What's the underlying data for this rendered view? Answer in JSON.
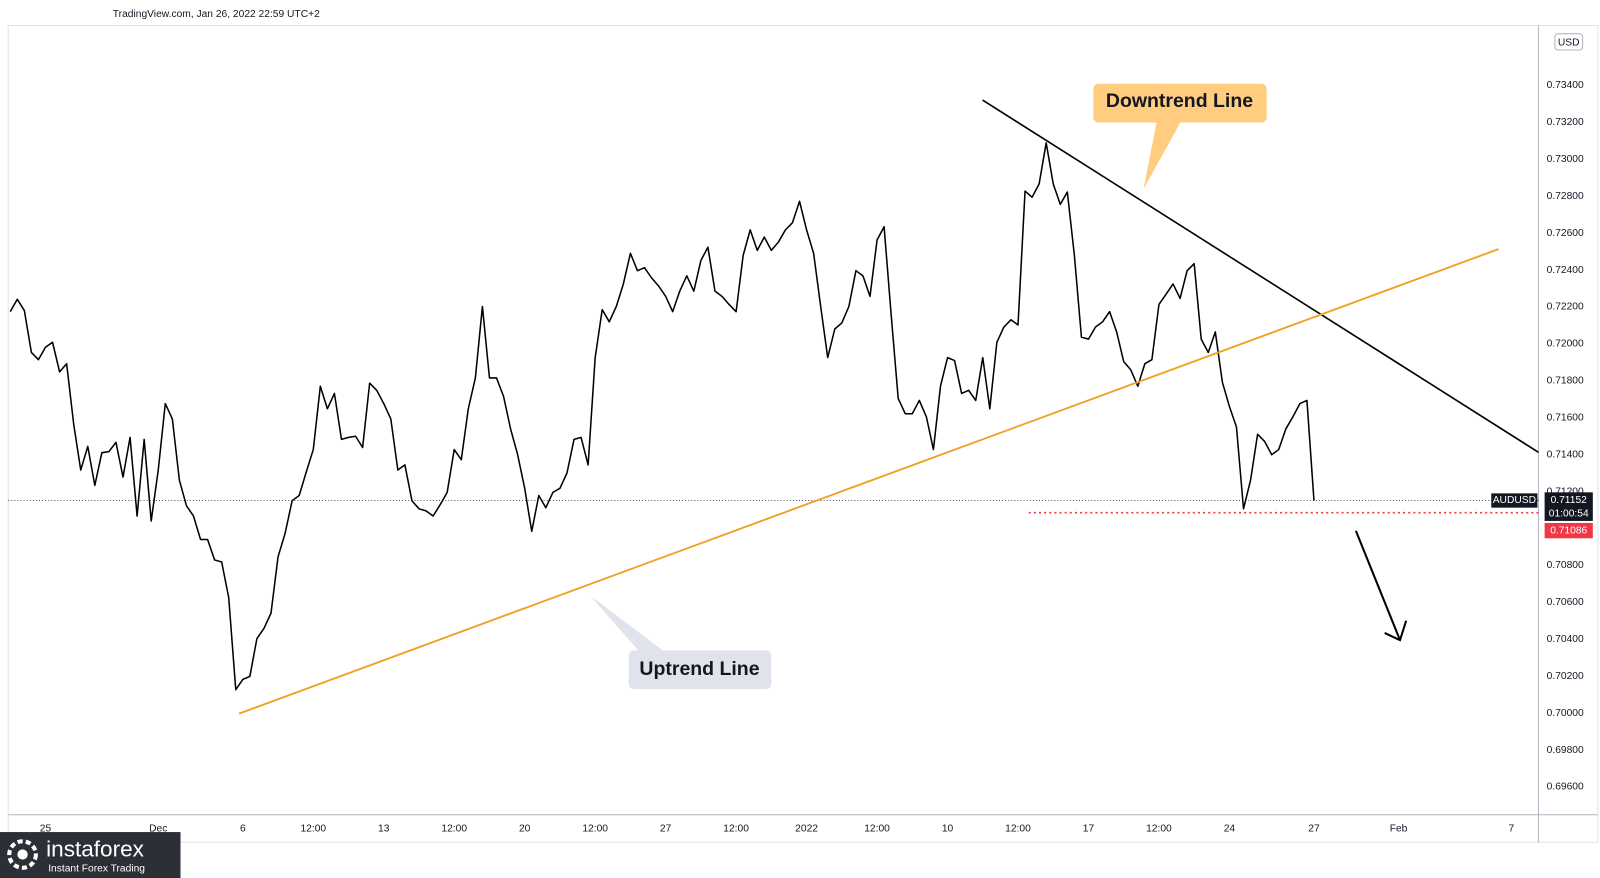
{
  "chart_data": {
    "type": "line",
    "header": "TradingView.com, Jan 26, 2022 22:59 UTC+2",
    "currency": "USD",
    "annotations": [
      "Downtrend Line",
      "Uptrend Line"
    ],
    "watermark": {
      "brand": "instaforex",
      "tagline": "Instant Forex Trading"
    },
    "categories": [
      null,
      null,
      null,
      null,
      null,
      "25",
      null,
      null,
      null,
      null,
      null,
      null,
      null,
      null,
      null,
      null,
      null,
      null,
      null,
      null,
      null,
      "Dec",
      null,
      null,
      null,
      null,
      null,
      null,
      null,
      null,
      null,
      null,
      null,
      "6",
      null,
      null,
      null,
      null,
      null,
      null,
      null,
      null,
      null,
      "12:00",
      null,
      null,
      null,
      null,
      null,
      null,
      null,
      null,
      null,
      "13",
      null,
      null,
      null,
      null,
      null,
      null,
      null,
      null,
      null,
      "12:00",
      null,
      null,
      null,
      null,
      null,
      null,
      null,
      null,
      null,
      "20",
      null,
      null,
      null,
      null,
      null,
      null,
      null,
      null,
      null,
      "12:00",
      null,
      null,
      null,
      null,
      null,
      null,
      null,
      null,
      null,
      "27",
      null,
      null,
      null,
      null,
      null,
      null,
      null,
      null,
      null,
      "12:00",
      null,
      null,
      null,
      null,
      null,
      null,
      null,
      null,
      null,
      "2022",
      null,
      null,
      null,
      null,
      null,
      null,
      null,
      null,
      null,
      "12:00",
      null,
      null,
      null,
      null,
      null,
      null,
      null,
      null,
      null,
      "10",
      null,
      null,
      null,
      null,
      null,
      null,
      null,
      null,
      null,
      "12:00",
      null,
      null,
      null,
      null,
      null,
      null,
      null,
      null,
      null,
      "17",
      null,
      null,
      null,
      null,
      null,
      null,
      null,
      null,
      null,
      "12:00",
      null,
      null,
      null,
      null,
      null,
      null,
      null,
      null,
      null,
      "24",
      null,
      null,
      null,
      null,
      null,
      null,
      null,
      null,
      null,
      null,
      null,
      "27",
      null,
      null,
      null,
      null,
      null,
      null,
      null,
      null,
      null,
      null,
      null,
      "Feb",
      null,
      null,
      null,
      null,
      null,
      null,
      null,
      null,
      null,
      null,
      null,
      null,
      null,
      null,
      null,
      "7",
      null,
      null,
      null,
      null
    ],
    "series": [
      {
        "name": "AUDUSD",
        "color": "#000000",
        "values": [
          0.72175,
          0.72242,
          0.72181,
          0.71954,
          0.71915,
          0.71982,
          0.72009,
          0.71849,
          0.71893,
          0.71566,
          0.71317,
          0.71445,
          0.71234,
          0.71411,
          0.71417,
          0.71467,
          0.71279,
          0.71494,
          0.71068,
          0.71483,
          0.71041,
          0.71317,
          0.71677,
          0.71594,
          0.71262,
          0.71124,
          0.71068,
          0.70941,
          0.70941,
          0.7083,
          0.70819,
          0.70626,
          0.70127,
          0.70183,
          0.70199,
          0.70404,
          0.70459,
          0.70542,
          0.70847,
          0.70974,
          0.71151,
          0.71179,
          0.71306,
          0.71428,
          0.71771,
          0.71649,
          0.71732,
          0.71483,
          0.71494,
          0.715,
          0.71439,
          0.71788,
          0.71749,
          0.71677,
          0.71594,
          0.71317,
          0.71345,
          0.71151,
          0.71107,
          0.71096,
          0.71068,
          0.71129,
          0.71196,
          0.71428,
          0.71373,
          0.71649,
          0.71816,
          0.72203,
          0.71816,
          0.71816,
          0.71716,
          0.71539,
          0.714,
          0.71218,
          0.70985,
          0.71179,
          0.71113,
          0.71196,
          0.71218,
          0.71301,
          0.71483,
          0.71494,
          0.71345,
          0.71926,
          0.72186,
          0.7212,
          0.72203,
          0.72325,
          0.72491,
          0.72397,
          0.72413,
          0.72358,
          0.72314,
          0.72258,
          0.72175,
          0.72286,
          0.72369,
          0.72286,
          0.72452,
          0.72524,
          0.72286,
          0.72258,
          0.72214,
          0.72175,
          0.7248,
          0.72618,
          0.72507,
          0.72579,
          0.72507,
          0.72552,
          0.72618,
          0.72657,
          0.72773,
          0.72618,
          0.72491,
          0.72203,
          0.71926,
          0.72081,
          0.72114,
          0.72203,
          0.72397,
          0.72369,
          0.72258,
          0.72563,
          0.72635,
          0.72159,
          0.71705,
          0.71622,
          0.71622,
          0.71694,
          0.71605,
          0.71428,
          0.71771,
          0.71926,
          0.7191,
          0.71732,
          0.71749,
          0.71694,
          0.71926,
          0.71649,
          0.72009,
          0.72092,
          0.72131,
          0.72103,
          0.72828,
          0.72795,
          0.72867,
          0.73089,
          0.72867,
          0.72756,
          0.72823,
          0.7248,
          0.72037,
          0.72026,
          0.72092,
          0.7212,
          0.72175,
          0.72065,
          0.71904,
          0.7186,
          0.71771,
          0.71893,
          0.71915,
          0.72214,
          0.72269,
          0.72325,
          0.72247,
          0.72397,
          0.72435,
          0.72026,
          0.71954,
          0.72065,
          0.71793,
          0.71661,
          0.7155,
          0.71107,
          0.71262,
          0.71511,
          0.71472,
          0.714,
          0.71428,
          0.71539,
          0.71605,
          0.71677,
          0.71694,
          0.71152,
          null,
          null,
          null,
          null,
          null,
          null,
          null,
          null,
          null,
          null,
          null,
          null,
          null,
          null,
          null,
          null,
          null,
          null,
          null,
          null,
          null,
          null,
          null,
          null,
          null,
          null,
          null,
          null,
          null,
          null,
          null,
          null
        ]
      }
    ],
    "last_price": 0.71152,
    "countdown": "01:00:54",
    "alert_price": 0.71086,
    "alert_color": "#f23645",
    "ylim": [
      0.6945,
      0.73725
    ],
    "yticks": [
      {
        "value": 0.696,
        "label": "0.69600"
      },
      {
        "value": 0.698,
        "label": "0.69800"
      },
      {
        "value": 0.7,
        "label": "0.70000"
      },
      {
        "value": 0.702,
        "label": "0.70200"
      },
      {
        "value": 0.704,
        "label": "0.70400"
      },
      {
        "value": 0.706,
        "label": "0.70600"
      },
      {
        "value": 0.708,
        "label": "0.70800"
      },
      {
        "value": 0.712,
        "label": "0.71200"
      },
      {
        "value": 0.714,
        "label": "0.71400"
      },
      {
        "value": 0.716,
        "label": "0.71600"
      },
      {
        "value": 0.718,
        "label": "0.71800"
      },
      {
        "value": 0.72,
        "label": "0.72000"
      },
      {
        "value": 0.722,
        "label": "0.72200"
      },
      {
        "value": 0.724,
        "label": "0.72400"
      },
      {
        "value": 0.726,
        "label": "0.72600"
      },
      {
        "value": 0.728,
        "label": "0.72800"
      },
      {
        "value": 0.73,
        "label": "0.73000"
      },
      {
        "value": 0.732,
        "label": "0.73200"
      },
      {
        "value": 0.734,
        "label": "0.73400"
      }
    ],
    "grid": false
  }
}
